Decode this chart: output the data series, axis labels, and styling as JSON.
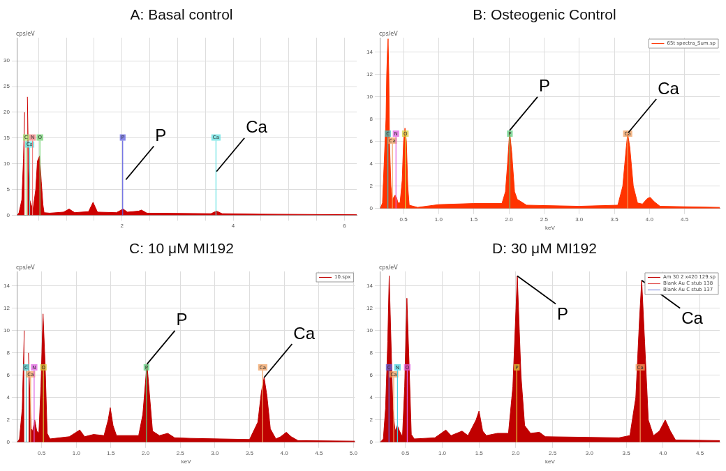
{
  "chart_data": [
    {
      "type": "area",
      "title": "A: Basal control",
      "ylabel": "cps/eV",
      "xlim": [
        0.12,
        6.22
      ],
      "ylim": [
        0,
        34.5
      ],
      "grid": true,
      "xticks": [
        {
          "value": 0.5,
          "label": null
        },
        {
          "value": 1,
          "label": null
        },
        {
          "value": 1.5,
          "label": null
        },
        2,
        {
          "value": 2.5,
          "label": null
        },
        {
          "value": 3,
          "label": null
        },
        {
          "value": 3.5,
          "label": null
        },
        4,
        {
          "value": 4.5,
          "label": null
        },
        {
          "value": 5,
          "label": null
        },
        {
          "value": 5.5,
          "label": null
        },
        6
      ],
      "yticks": [
        0,
        5,
        10,
        15,
        20,
        25,
        30
      ],
      "series": [
        {
          "color": "#cc0000",
          "x": [
            0.12,
            0.15,
            0.2,
            0.23,
            0.25,
            0.26,
            0.29,
            0.3,
            0.32,
            0.34,
            0.37,
            0.4,
            0.45,
            0.48,
            0.52,
            0.55,
            0.58,
            0.6,
            0.7,
            0.95,
            1.05,
            1.15,
            1.4,
            1.48,
            1.56,
            1.9,
            2.02,
            2.1,
            2.3,
            2.35,
            2.45,
            3.6,
            3.7,
            3.8,
            4.5,
            6.22
          ],
          "values": [
            0,
            0.5,
            3,
            11,
            20,
            null,
            null,
            23,
            9,
            3,
            2,
            1,
            5,
            10.5,
            11.5,
            6.5,
            2,
            0.5,
            0.4,
            0.6,
            1.2,
            0.5,
            0.7,
            2.5,
            0.6,
            0.5,
            1.2,
            0.6,
            0.8,
            1,
            0.4,
            0.3,
            0.8,
            0.3,
            0.2,
            0.1
          ]
        }
      ],
      "ref_lines": [
        {
          "axis": "x",
          "value": 0.277,
          "label": "C",
          "color": "#a0e070"
        },
        {
          "axis": "x",
          "value": 0.341,
          "label": "Ca",
          "color": "#60e0e0"
        },
        {
          "axis": "x",
          "value": 0.392,
          "label": "N",
          "color": "#f08080"
        },
        {
          "axis": "x",
          "value": 0.525,
          "label": "O",
          "color": "#70d070"
        },
        {
          "axis": "x",
          "value": 2.013,
          "label": "P",
          "color": "#6060e0"
        },
        {
          "axis": "x",
          "value": 3.69,
          "label": "Ca",
          "color": "#60e0e0"
        }
      ],
      "annotations": [
        {
          "text": "P",
          "x": 2.07,
          "y": 6.9
        },
        {
          "text": "Ca",
          "x": 3.7,
          "y": 8.5
        }
      ]
    },
    {
      "type": "area",
      "title": "B: Osteogenic Control",
      "xlabel": "keV",
      "ylabel": "cps/eV",
      "xlim": [
        0.17,
        5.0
      ],
      "ylim": [
        0,
        15.3
      ],
      "grid": true,
      "legend": "top right",
      "xticks": [
        0.5,
        {
          "value": 1,
          "label": "1.0"
        },
        1.5,
        {
          "value": 2,
          "label": "2.0"
        },
        2.5,
        {
          "value": 3,
          "label": "3.0"
        },
        3.5,
        {
          "value": 4,
          "label": "4.0"
        },
        4.5
      ],
      "yticks": [
        0,
        2,
        4,
        6,
        8,
        10,
        12,
        14
      ],
      "series": [
        {
          "name": "65t spectra_Sum.sp",
          "color": "#ff3300",
          "x": [
            0.17,
            0.2,
            0.22,
            0.25,
            0.26,
            0.27,
            0.28,
            0.29,
            0.3,
            0.32,
            0.34,
            0.38,
            0.4,
            0.42,
            0.45,
            0.48,
            0.5,
            0.52,
            0.54,
            0.56,
            0.58,
            0.7,
            1.0,
            1.5,
            1.9,
            1.95,
            1.98,
            2.01,
            2.04,
            2.08,
            2.12,
            2.15,
            2.25,
            3.0,
            3.55,
            3.62,
            3.67,
            3.69,
            3.72,
            3.77,
            3.83,
            3.9,
            3.97,
            4.01,
            4.07,
            4.15,
            5.0
          ],
          "values": [
            0,
            0.5,
            3.5,
            8,
            12,
            14,
            15.2,
            12,
            6,
            2,
            0.8,
            1.2,
            1,
            0.5,
            0.5,
            2.5,
            6,
            7.2,
            6,
            2,
            0.3,
            0.1,
            0.35,
            0.45,
            0.45,
            1.5,
            4,
            6.9,
            5,
            1.5,
            0.8,
            0.7,
            0.3,
            0.2,
            0.3,
            2,
            5.5,
            6.7,
            5.5,
            2,
            0.5,
            0.4,
            0.9,
            1,
            0.6,
            0.2,
            0.1
          ]
        }
      ],
      "ref_lines": [
        {
          "axis": "x",
          "value": 0.277,
          "label": "C",
          "color": "#40c0c0"
        },
        {
          "axis": "x",
          "value": 0.341,
          "label": "Ca",
          "color": "#f0a060"
        },
        {
          "axis": "x",
          "value": 0.392,
          "label": "N",
          "color": "#e060e0"
        },
        {
          "axis": "x",
          "value": 0.525,
          "label": "O",
          "color": "#d8d040"
        },
        {
          "axis": "x",
          "value": 2.013,
          "label": "P",
          "color": "#60d080"
        },
        {
          "axis": "x",
          "value": 3.69,
          "label": "Ca",
          "color": "#f0a060"
        }
      ],
      "annotations": [
        {
          "text": "P",
          "x": 2.01,
          "y": 7.0
        },
        {
          "text": "Ca",
          "x": 3.7,
          "y": 6.8
        }
      ]
    },
    {
      "type": "area",
      "title": "C: 10 μM MI192",
      "xlabel": "keV",
      "ylabel": "cps/eV",
      "xlim": [
        0.15,
        5.02
      ],
      "ylim": [
        0,
        15.3
      ],
      "grid": true,
      "legend": "top right",
      "xticks": [
        0.5,
        {
          "value": 1,
          "label": "1.0"
        },
        1.5,
        {
          "value": 2,
          "label": "2.0"
        },
        2.5,
        {
          "value": 3,
          "label": "3.0"
        },
        3.5,
        {
          "value": 4,
          "label": "4.0"
        },
        4.5,
        {
          "value": 5,
          "label": "5.0"
        }
      ],
      "yticks": [
        0,
        2,
        4,
        6,
        8,
        10,
        12,
        14
      ],
      "series": [
        {
          "name": "10.spx",
          "color": "#c00000",
          "x": [
            0.15,
            0.18,
            0.22,
            0.25,
            0.26,
            0.3,
            0.31,
            0.33,
            0.35,
            0.37,
            0.4,
            0.43,
            0.46,
            0.49,
            0.52,
            0.55,
            0.58,
            0.62,
            0.9,
            1.05,
            1.12,
            1.25,
            1.4,
            1.46,
            1.49,
            1.53,
            1.58,
            1.9,
            1.96,
            2.02,
            2.06,
            2.1,
            2.2,
            2.32,
            2.42,
            2.65,
            3.5,
            3.62,
            3.67,
            3.71,
            3.75,
            3.8,
            3.88,
            3.95,
            4.03,
            4.1,
            4.2,
            5.02
          ],
          "values": [
            0,
            0.3,
            3,
            10,
            null,
            null,
            8,
            4,
            1.2,
            1,
            2,
            1,
            0.8,
            5,
            11.5,
            7,
            0.8,
            0.3,
            0.5,
            1.1,
            0.5,
            0.7,
            0.6,
            2,
            3.1,
            1.5,
            0.6,
            0.6,
            2.5,
            7,
            4,
            1,
            0.6,
            0.8,
            0.4,
            0.35,
            0.25,
            1.8,
            4.5,
            5.8,
            4.2,
            1.2,
            0.3,
            0.5,
            0.9,
            0.5,
            0.15,
            0.1
          ]
        }
      ],
      "ref_lines": [
        {
          "axis": "x",
          "value": 0.277,
          "label": "C",
          "color": "#40c0c0"
        },
        {
          "axis": "x",
          "value": 0.341,
          "label": "Ca",
          "color": "#f0a060"
        },
        {
          "axis": "x",
          "value": 0.392,
          "label": "N",
          "color": "#e060e0"
        },
        {
          "axis": "x",
          "value": 0.525,
          "label": "O",
          "color": "#d8d040"
        },
        {
          "axis": "x",
          "value": 2.013,
          "label": "P",
          "color": "#60d080"
        },
        {
          "axis": "x",
          "value": 3.69,
          "label": "Ca",
          "color": "#f0a060"
        }
      ],
      "annotations": [
        {
          "text": "P",
          "x": 2.02,
          "y": 7
        },
        {
          "text": "Ca",
          "x": 3.71,
          "y": 5.8
        }
      ]
    },
    {
      "type": "area",
      "title": "D: 30 μM MI192",
      "xlabel": "keV",
      "ylabel": "cps/eV",
      "xlim": [
        0.16,
        4.77
      ],
      "ylim": [
        0,
        15.3
      ],
      "grid": true,
      "legend": "top right",
      "xticks": [
        0.5,
        {
          "value": 1,
          "label": "1.0"
        },
        1.5,
        {
          "value": 2,
          "label": "2.0"
        },
        2.5,
        {
          "value": 3,
          "label": "3.0"
        },
        3.5,
        {
          "value": 4,
          "label": "4.0"
        },
        4.5
      ],
      "yticks": [
        0,
        2,
        4,
        6,
        8,
        10,
        12,
        14
      ],
      "series": [
        {
          "name": "Am 30 2 x420 129.sp",
          "color": "#c00000",
          "x": [
            0.16,
            0.2,
            0.23,
            0.26,
            0.28,
            0.3,
            0.33,
            0.36,
            0.39,
            0.42,
            0.46,
            0.49,
            0.52,
            0.55,
            0.58,
            0.62,
            0.9,
            1.05,
            1.12,
            1.27,
            1.35,
            1.46,
            1.5,
            1.55,
            1.6,
            1.75,
            1.9,
            1.96,
            2.02,
            2.07,
            2.12,
            2.2,
            2.32,
            2.4,
            3.4,
            3.55,
            3.63,
            3.68,
            3.71,
            3.75,
            3.8,
            3.87,
            3.95,
            4.03,
            4.1,
            4.17,
            4.77
          ],
          "values": [
            0,
            0.3,
            3,
            9,
            14.9,
            10,
            3,
            1,
            1.5,
            1,
            0.5,
            5,
            12.9,
            7,
            0.7,
            0.3,
            0.4,
            1.1,
            0.6,
            1,
            0.6,
            2,
            2.8,
            1,
            0.6,
            0.8,
            0.8,
            5,
            14.9,
            6,
            1.5,
            0.8,
            0.9,
            0.5,
            0.4,
            0.6,
            4,
            11,
            14.5,
            9,
            2,
            0.6,
            1,
            2,
            1,
            0.2,
            0.15
          ]
        },
        {
          "name": "Blank Au C stub 138",
          "color": "#e05050"
        },
        {
          "name": "Blank Au C stub 137",
          "color": "#8090e0"
        }
      ],
      "ref_lines": [
        {
          "axis": "x",
          "value": 0.277,
          "label": "C",
          "color": "#6060e0"
        },
        {
          "axis": "x",
          "value": 0.341,
          "label": "Ca",
          "color": "#f0a060"
        },
        {
          "axis": "x",
          "value": 0.392,
          "label": "N",
          "color": "#40d0e0"
        },
        {
          "axis": "x",
          "value": 0.525,
          "label": "O",
          "color": "#e060e0"
        },
        {
          "axis": "x",
          "value": 2.013,
          "label": "P",
          "color": "#e0d040"
        },
        {
          "axis": "x",
          "value": 3.69,
          "label": "Ca",
          "color": "#f0a060"
        }
      ],
      "annotations": [
        {
          "text": "P",
          "x": 2.02,
          "y": 14.9
        },
        {
          "text": "Ca",
          "x": 3.71,
          "y": 14.5
        }
      ]
    }
  ]
}
